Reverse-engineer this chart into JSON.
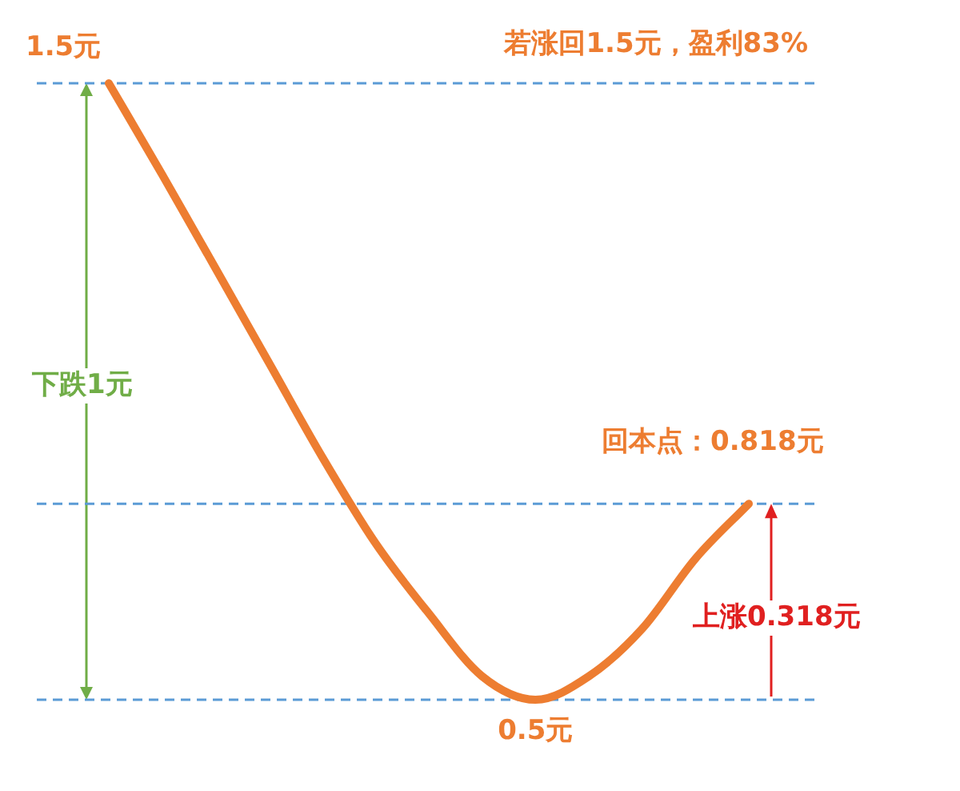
{
  "chart_data": {
    "type": "line",
    "categories": [
      null,
      null,
      null,
      null,
      null,
      null,
      null,
      null,
      null,
      null,
      null,
      null,
      null
    ],
    "series": [
      {
        "color": "#ed7d31",
        "values": [
          1.5,
          1.352,
          1.2,
          1.047,
          0.894,
          0.754,
          0.64,
          0.538,
          0.5,
          0.538,
          0.615,
          0.729,
          0.818
        ],
        "value_labels": [
          "1.5元",
          null,
          null,
          null,
          null,
          null,
          null,
          null,
          "0.5元",
          null,
          null,
          null,
          "回本点：0.818元"
        ]
      }
    ],
    "legend": false,
    "marker": "none",
    "line_style": "solid",
    "ref_lines": [
      {
        "axis": "y",
        "value": 1.5,
        "color": "#5b9bd5",
        "line_style": "dashed"
      },
      {
        "axis": "y",
        "value": 0.818,
        "color": "#5b9bd5",
        "line_style": "dashed"
      },
      {
        "axis": "y",
        "value": 0.5,
        "color": "#5b9bd5",
        "line_style": "dashed"
      }
    ],
    "annotations": [
      "若涨回1.5元，盈利83%",
      "下跌1元",
      "上涨0.318元"
    ]
  }
}
